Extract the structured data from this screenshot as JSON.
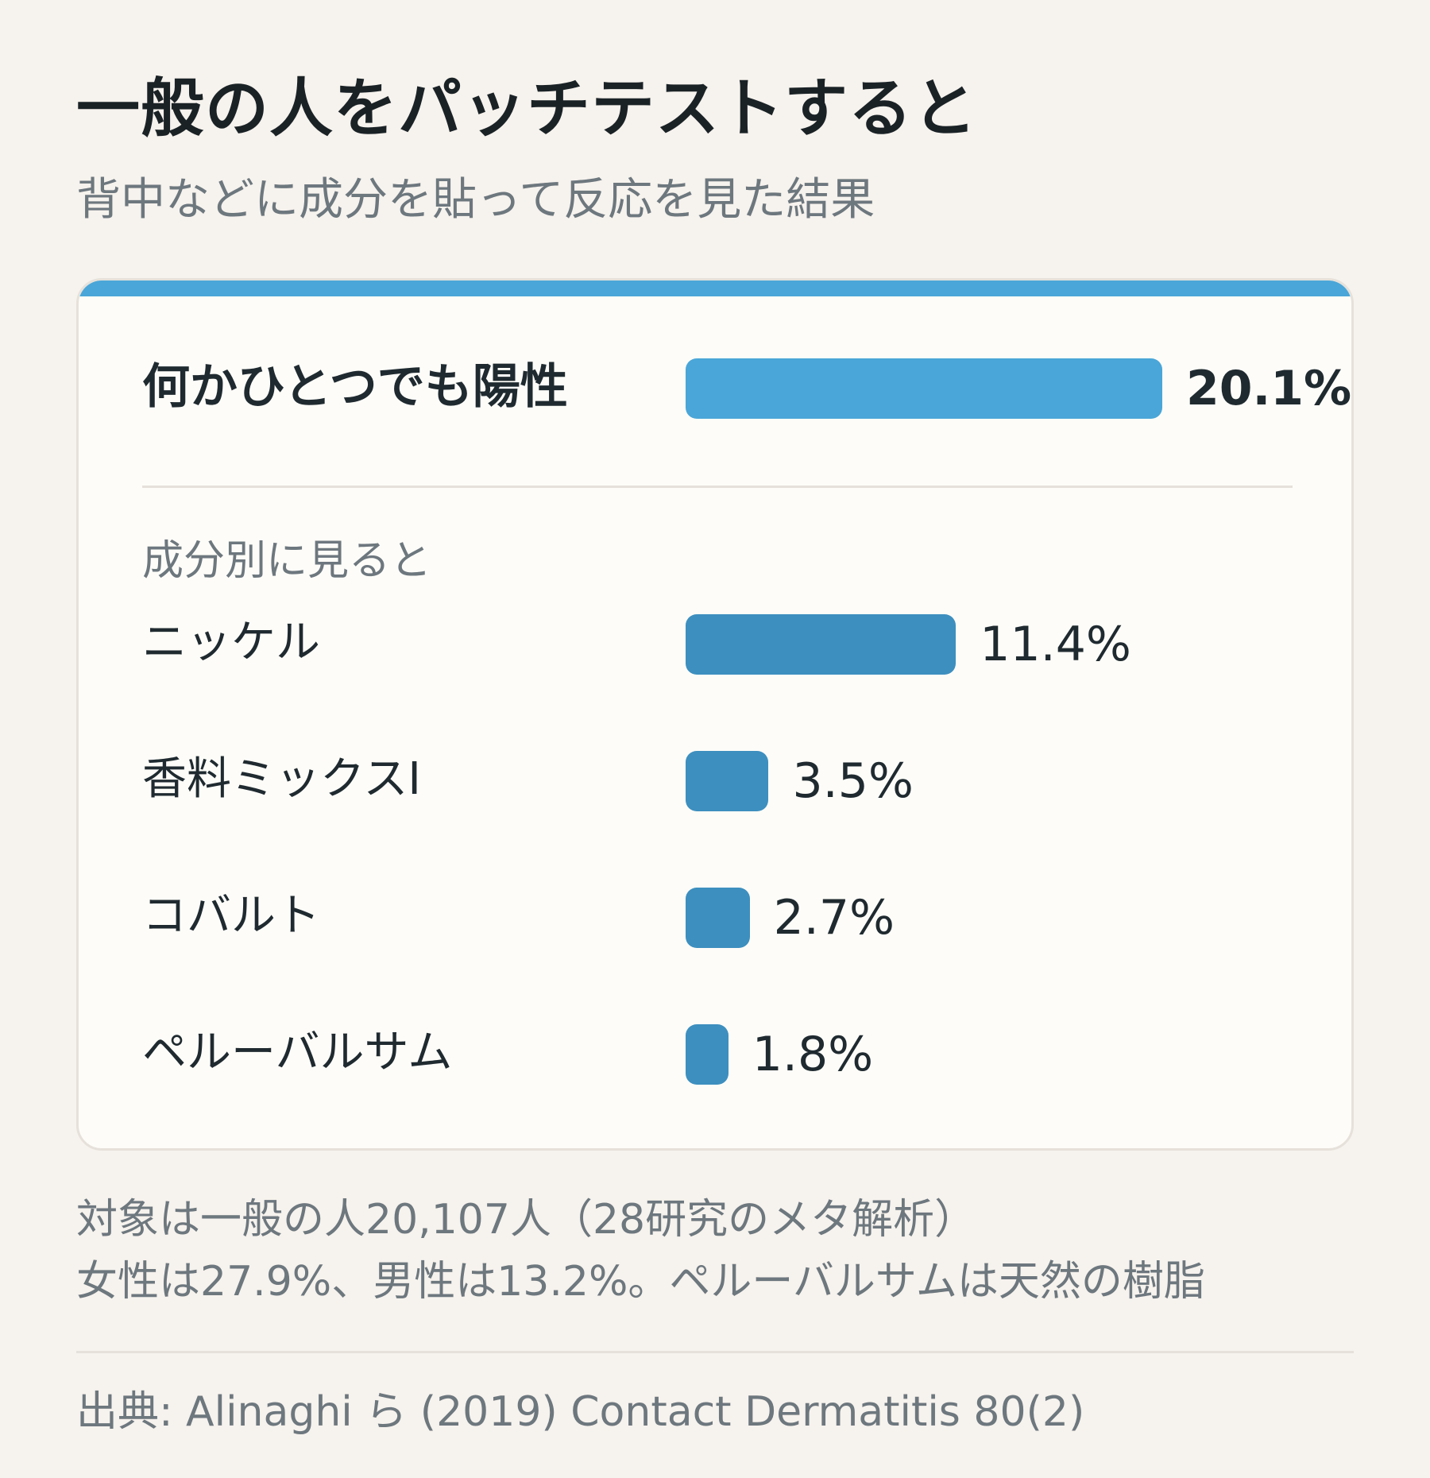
{
  "title": "一般の人をパッチテストすると",
  "subtitle": "背中などに成分を貼って反応を見た結果",
  "section_label": "成分別に見ると",
  "notes": [
    "対象は一般の人20,107人（28研究のメタ解析）",
    "女性は27.9%、男性は13.2%。ペルーバルサムは天然の樹脂"
  ],
  "source": "出典: Alinaghi ら (2019) Contact Dermatitis 80(2)",
  "colors": {
    "accent": "#4aa6d8",
    "total_bar": "#4aa6d8",
    "item_bar": "#3d8fbf"
  },
  "chart_data": {
    "type": "bar",
    "orientation": "horizontal",
    "unit": "%",
    "total": {
      "label": "何かひとつでも陽性",
      "value": 20.1,
      "value_label": "20.1%"
    },
    "categories": [
      "ニッケル",
      "香料ミックスI",
      "コバルト",
      "ペルーバルサム"
    ],
    "values": [
      11.4,
      3.5,
      2.7,
      1.8
    ],
    "value_labels": [
      "11.4%",
      "3.5%",
      "2.7%",
      "1.8%"
    ],
    "grid": false,
    "legend": "none"
  }
}
